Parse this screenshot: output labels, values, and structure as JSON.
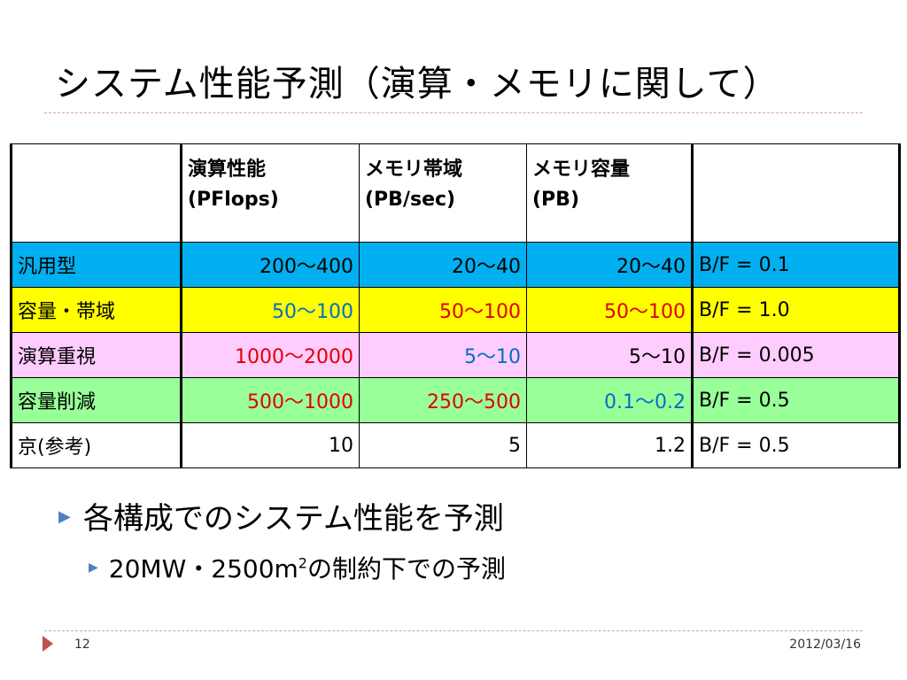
{
  "title": "システム性能予測（演算・メモリに関して）",
  "table": {
    "headers": [
      {
        "line1": "",
        "line2": ""
      },
      {
        "line1": "演算性能",
        "line2": "(PFlops)"
      },
      {
        "line1": "メモリ帯域",
        "line2": "(PB/sec)"
      },
      {
        "line1": "メモリ容量",
        "line2": "(PB)"
      },
      {
        "line1": "",
        "line2": ""
      }
    ],
    "rows": [
      {
        "label": "汎用型",
        "compute": "200～400",
        "bandwidth": "20～40",
        "capacity": "20～40",
        "bf": "B/F = 0.1",
        "bg": "#00b0f0"
      },
      {
        "label": "容量・帯域",
        "compute": "50～100",
        "bandwidth": "50～100",
        "capacity": "50～100",
        "bf": "B/F = 1.0",
        "bg": "#ffff00"
      },
      {
        "label": "演算重視",
        "compute": "1000～2000",
        "bandwidth": "5～10",
        "capacity": "5～10",
        "bf": "B/F = 0.005",
        "bg": "#ffccff"
      },
      {
        "label": "容量削減",
        "compute": "500～1000",
        "bandwidth": "250～500",
        "capacity": "0.1～0.2",
        "bf": "B/F = 0.5",
        "bg": "#99ff99"
      },
      {
        "label": "京(参考)",
        "compute": "10",
        "bandwidth": "5",
        "capacity": "1.2",
        "bf": "B/F = 0.5",
        "bg": "#ffffff"
      }
    ]
  },
  "bullets": {
    "level1": "各構成でのシステム性能を予測",
    "level2_prefix": "20MW・2500m",
    "level2_sup": "2",
    "level2_suffix": "の制約下での予測"
  },
  "footer": {
    "page_number": "12",
    "date": "2012/03/16"
  },
  "colors": {
    "accent_blue_text": "#0070c0",
    "accent_red_text": "#e00000",
    "bullet_color": "#4f81bd",
    "footer_arrow": "#c0504d"
  }
}
